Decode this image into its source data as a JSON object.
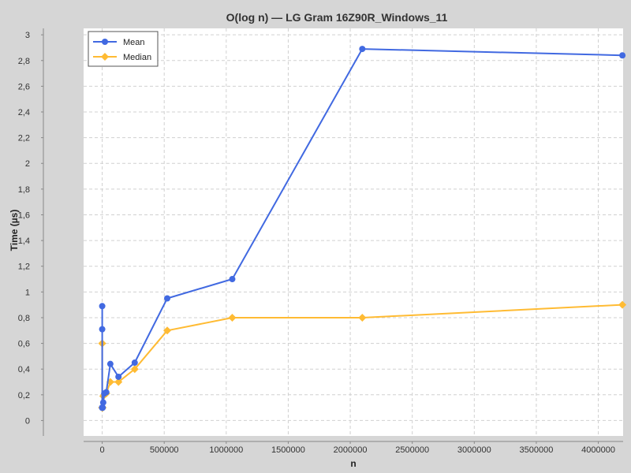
{
  "chart_data": {
    "type": "line",
    "title": "O(log n) — LG Gram 16Z90R_Windows_11",
    "xlabel": "n",
    "ylabel": "Time (µs)",
    "xlim": [
      -150000,
      4200000
    ],
    "ylim": [
      -0.12,
      3.05
    ],
    "x_ticks": [
      0,
      500000,
      1000000,
      1500000,
      2000000,
      2500000,
      3000000,
      3500000,
      4000000
    ],
    "x_tick_labels": [
      "0",
      "500000",
      "1000000",
      "1500000",
      "2000000",
      "2500000",
      "3000000",
      "3500000",
      "4000000"
    ],
    "y_ticks": [
      0,
      0.2,
      0.4,
      0.6,
      0.8,
      1,
      1.2,
      1.4,
      1.6,
      1.8,
      2,
      2.2,
      2.4,
      2.6,
      2.8,
      3
    ],
    "y_tick_labels": [
      "0",
      "0,2",
      "0,4",
      "0,6",
      "0,8",
      "1",
      "1,2",
      "1,4",
      "1,6",
      "1,8",
      "2",
      "2,2",
      "2,4",
      "2,6",
      "2,8",
      "3"
    ],
    "grid": true,
    "legend_position": "top-left",
    "series": [
      {
        "name": "Mean",
        "color": "#4169e1",
        "marker": "circle",
        "x": [
          1,
          2,
          4,
          8,
          16,
          32,
          64,
          128,
          256,
          512,
          1024,
          2048,
          4096,
          8192,
          16384,
          32768,
          65536,
          131072,
          262144,
          524288,
          1048576,
          2097152,
          4194304
        ],
        "values": [
          0.89,
          0.71,
          0.1,
          0.1,
          0.1,
          0.1,
          0.1,
          0.1,
          0.1,
          0.1,
          0.1,
          0.1,
          0.1,
          0.14,
          0.21,
          0.22,
          0.44,
          0.34,
          0.45,
          0.95,
          1.1,
          2.89,
          2.84
        ]
      },
      {
        "name": "Median",
        "color": "#ffbb33",
        "marker": "diamond",
        "x": [
          1,
          2,
          4,
          8,
          16,
          32,
          64,
          128,
          256,
          512,
          1024,
          2048,
          4096,
          8192,
          16384,
          32768,
          65536,
          131072,
          262144,
          524288,
          1048576,
          2097152,
          4194304
        ],
        "values": [
          0.6,
          0.6,
          0.1,
          0.1,
          0.1,
          0.1,
          0.1,
          0.1,
          0.1,
          0.1,
          0.1,
          0.1,
          0.1,
          0.19,
          0.2,
          0.21,
          0.3,
          0.3,
          0.4,
          0.7,
          0.8,
          0.8,
          0.9
        ]
      }
    ]
  }
}
